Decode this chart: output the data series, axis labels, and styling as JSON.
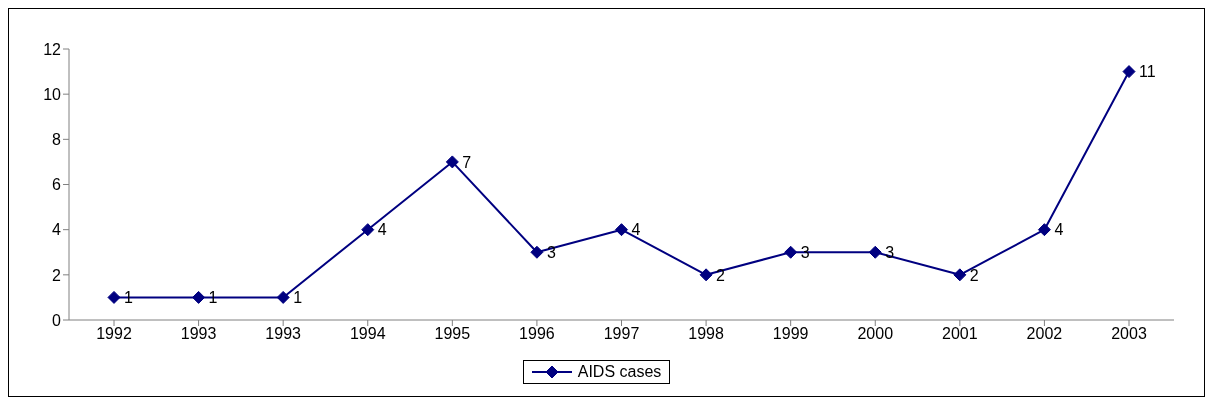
{
  "chart_data": {
    "type": "line",
    "categories": [
      "1992",
      "1993",
      "1993",
      "1994",
      "1995",
      "1996",
      "1997",
      "1998",
      "1999",
      "2000",
      "2001",
      "2002",
      "2003"
    ],
    "series": [
      {
        "name": "AIDS cases",
        "color": "#000080",
        "values": [
          1,
          1,
          1,
          4,
          7,
          3,
          4,
          2,
          3,
          3,
          2,
          4,
          11
        ]
      }
    ],
    "ylim": [
      0,
      12
    ],
    "yticks": [
      0,
      2,
      4,
      6,
      8,
      10,
      12
    ],
    "legend": "bottom",
    "marker": "diamond",
    "line_style": "solid",
    "data_labels": true
  }
}
